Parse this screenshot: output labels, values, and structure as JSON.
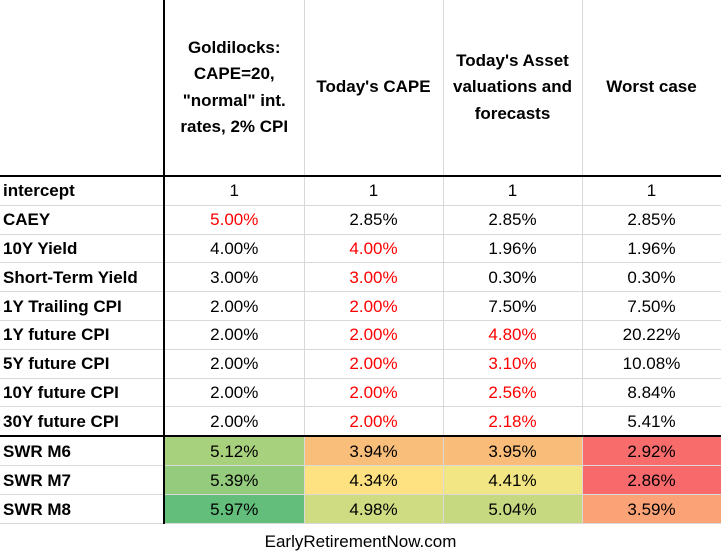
{
  "columns": [
    "",
    "Goldilocks: CAPE=20, \"normal\" int. rates, 2% CPI",
    "Today's CAPE",
    "Today's Asset valuations and forecasts",
    "Worst case"
  ],
  "rows": [
    {
      "label": "intercept",
      "values": [
        "1",
        "1",
        "1",
        "1"
      ]
    },
    {
      "label": "CAEY",
      "values": [
        "5.00%",
        "2.85%",
        "2.85%",
        "2.85%"
      ]
    },
    {
      "label": "10Y Yield",
      "values": [
        "4.00%",
        "4.00%",
        "1.96%",
        "1.96%"
      ]
    },
    {
      "label": "Short-Term Yield",
      "values": [
        "3.00%",
        "3.00%",
        "0.30%",
        "0.30%"
      ]
    },
    {
      "label": "1Y Trailing CPI",
      "values": [
        "2.00%",
        "2.00%",
        "7.50%",
        "7.50%"
      ]
    },
    {
      "label": "1Y future CPI",
      "values": [
        "2.00%",
        "2.00%",
        "4.80%",
        "20.22%"
      ]
    },
    {
      "label": "5Y future CPI",
      "values": [
        "2.00%",
        "2.00%",
        "3.10%",
        "10.08%"
      ]
    },
    {
      "label": "10Y future CPI",
      "values": [
        "2.00%",
        "2.00%",
        "2.56%",
        "8.84%"
      ]
    },
    {
      "label": "30Y future CPI",
      "values": [
        "2.00%",
        "2.00%",
        "2.18%",
        "5.41%"
      ]
    }
  ],
  "swr_rows": [
    {
      "label": "SWR M6",
      "values": [
        "5.12%",
        "3.94%",
        "3.95%",
        "2.92%"
      ]
    },
    {
      "label": "SWR M7",
      "values": [
        "5.39%",
        "4.34%",
        "4.41%",
        "2.86%"
      ]
    },
    {
      "label": "SWR M8",
      "values": [
        "5.97%",
        "4.98%",
        "5.04%",
        "3.59%"
      ]
    }
  ],
  "highlight": {
    "red_text_color": "#ff0000",
    "red_cells": {
      "1": [
        1
      ],
      "2": [
        2
      ],
      "3": [
        2
      ],
      "4": [
        2
      ],
      "5": [
        2,
        3
      ],
      "6": [
        2,
        3
      ],
      "7": [
        2,
        3
      ],
      "8": [
        2,
        3
      ]
    },
    "swr_fill_colors": [
      [
        "#a8d17e",
        "#f9be7a",
        "#f9bd79",
        "#f86c6b"
      ],
      [
        "#94cb7c",
        "#fee180",
        "#f2e583",
        "#f8696b"
      ],
      [
        "#63be7b",
        "#cfdc82",
        "#c6d980",
        "#fba276"
      ]
    ]
  },
  "footer": "EarlyRetirementNow.com"
}
